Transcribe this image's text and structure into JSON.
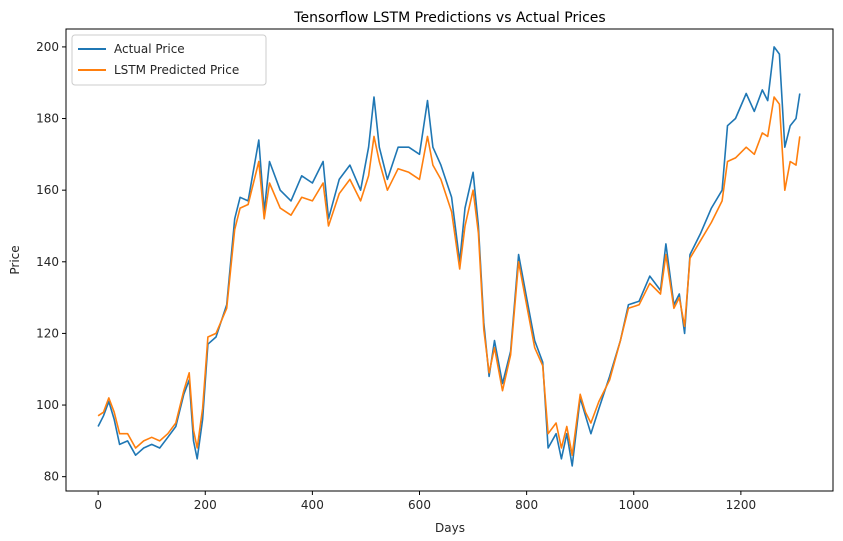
{
  "chart_data": {
    "type": "line",
    "title": "Tensorflow LSTM Predictions vs Actual Prices",
    "xlabel": "Days",
    "ylabel": "Price",
    "xlim": [
      -60,
      1372
    ],
    "ylim": [
      76,
      205
    ],
    "xticks": [
      0,
      200,
      400,
      600,
      800,
      1000,
      1200
    ],
    "yticks": [
      80,
      100,
      120,
      140,
      160,
      180,
      200
    ],
    "grid": false,
    "legend_position": "top-left",
    "series": [
      {
        "name": "Actual Price",
        "color": "#1f77b4",
        "points": [
          [
            0,
            94
          ],
          [
            10,
            97
          ],
          [
            20,
            101
          ],
          [
            30,
            96
          ],
          [
            40,
            89
          ],
          [
            55,
            90
          ],
          [
            70,
            86
          ],
          [
            85,
            88
          ],
          [
            100,
            89
          ],
          [
            115,
            88
          ],
          [
            130,
            91
          ],
          [
            145,
            94
          ],
          [
            160,
            103
          ],
          [
            170,
            107
          ],
          [
            178,
            90
          ],
          [
            185,
            85
          ],
          [
            195,
            96
          ],
          [
            205,
            117
          ],
          [
            220,
            119
          ],
          [
            240,
            128
          ],
          [
            255,
            152
          ],
          [
            265,
            158
          ],
          [
            280,
            157
          ],
          [
            300,
            174
          ],
          [
            310,
            154
          ],
          [
            320,
            168
          ],
          [
            340,
            160
          ],
          [
            360,
            157
          ],
          [
            380,
            164
          ],
          [
            400,
            162
          ],
          [
            420,
            168
          ],
          [
            430,
            152
          ],
          [
            450,
            163
          ],
          [
            470,
            167
          ],
          [
            490,
            160
          ],
          [
            505,
            172
          ],
          [
            515,
            186
          ],
          [
            525,
            172
          ],
          [
            540,
            163
          ],
          [
            560,
            172
          ],
          [
            580,
            172
          ],
          [
            600,
            170
          ],
          [
            615,
            185
          ],
          [
            625,
            172
          ],
          [
            640,
            167
          ],
          [
            660,
            158
          ],
          [
            675,
            140
          ],
          [
            685,
            155
          ],
          [
            700,
            165
          ],
          [
            710,
            150
          ],
          [
            720,
            123
          ],
          [
            730,
            108
          ],
          [
            740,
            118
          ],
          [
            755,
            106
          ],
          [
            770,
            115
          ],
          [
            785,
            142
          ],
          [
            800,
            130
          ],
          [
            815,
            118
          ],
          [
            830,
            112
          ],
          [
            840,
            88
          ],
          [
            855,
            92
          ],
          [
            865,
            85
          ],
          [
            875,
            92
          ],
          [
            885,
            83
          ],
          [
            900,
            102
          ],
          [
            910,
            97
          ],
          [
            920,
            92
          ],
          [
            935,
            99
          ],
          [
            955,
            108
          ],
          [
            975,
            118
          ],
          [
            990,
            128
          ],
          [
            1010,
            129
          ],
          [
            1030,
            136
          ],
          [
            1050,
            132
          ],
          [
            1060,
            145
          ],
          [
            1075,
            128
          ],
          [
            1085,
            131
          ],
          [
            1095,
            120
          ],
          [
            1105,
            142
          ],
          [
            1125,
            148
          ],
          [
            1145,
            155
          ],
          [
            1165,
            160
          ],
          [
            1175,
            178
          ],
          [
            1190,
            180
          ],
          [
            1210,
            187
          ],
          [
            1225,
            182
          ],
          [
            1240,
            188
          ],
          [
            1250,
            185
          ],
          [
            1262,
            200
          ],
          [
            1272,
            198
          ],
          [
            1282,
            172
          ],
          [
            1292,
            178
          ],
          [
            1303,
            180
          ],
          [
            1310,
            187
          ]
        ]
      },
      {
        "name": "LSTM Predicted Price",
        "color": "#ff7f0e",
        "points": [
          [
            0,
            97
          ],
          [
            10,
            98
          ],
          [
            20,
            102
          ],
          [
            30,
            98
          ],
          [
            40,
            92
          ],
          [
            55,
            92
          ],
          [
            70,
            88
          ],
          [
            85,
            90
          ],
          [
            100,
            91
          ],
          [
            115,
            90
          ],
          [
            130,
            92
          ],
          [
            145,
            95
          ],
          [
            160,
            104
          ],
          [
            170,
            109
          ],
          [
            178,
            93
          ],
          [
            185,
            88
          ],
          [
            195,
            99
          ],
          [
            205,
            119
          ],
          [
            220,
            120
          ],
          [
            240,
            127
          ],
          [
            255,
            149
          ],
          [
            265,
            155
          ],
          [
            280,
            156
          ],
          [
            300,
            168
          ],
          [
            310,
            152
          ],
          [
            320,
            162
          ],
          [
            340,
            155
          ],
          [
            360,
            153
          ],
          [
            380,
            158
          ],
          [
            400,
            157
          ],
          [
            420,
            162
          ],
          [
            430,
            150
          ],
          [
            450,
            159
          ],
          [
            470,
            163
          ],
          [
            490,
            157
          ],
          [
            505,
            164
          ],
          [
            515,
            175
          ],
          [
            525,
            168
          ],
          [
            540,
            160
          ],
          [
            560,
            166
          ],
          [
            580,
            165
          ],
          [
            600,
            163
          ],
          [
            615,
            175
          ],
          [
            625,
            167
          ],
          [
            640,
            163
          ],
          [
            660,
            154
          ],
          [
            675,
            138
          ],
          [
            685,
            150
          ],
          [
            700,
            160
          ],
          [
            710,
            148
          ],
          [
            720,
            121
          ],
          [
            730,
            109
          ],
          [
            740,
            116
          ],
          [
            755,
            104
          ],
          [
            770,
            114
          ],
          [
            785,
            140
          ],
          [
            800,
            128
          ],
          [
            815,
            116
          ],
          [
            830,
            111
          ],
          [
            840,
            92
          ],
          [
            855,
            95
          ],
          [
            865,
            88
          ],
          [
            875,
            94
          ],
          [
            885,
            86
          ],
          [
            900,
            103
          ],
          [
            910,
            98
          ],
          [
            920,
            95
          ],
          [
            935,
            101
          ],
          [
            955,
            107
          ],
          [
            975,
            118
          ],
          [
            990,
            127
          ],
          [
            1010,
            128
          ],
          [
            1030,
            134
          ],
          [
            1050,
            131
          ],
          [
            1060,
            142
          ],
          [
            1075,
            127
          ],
          [
            1085,
            130
          ],
          [
            1095,
            122
          ],
          [
            1105,
            141
          ],
          [
            1125,
            146
          ],
          [
            1145,
            151
          ],
          [
            1165,
            157
          ],
          [
            1175,
            168
          ],
          [
            1190,
            169
          ],
          [
            1210,
            172
          ],
          [
            1225,
            170
          ],
          [
            1240,
            176
          ],
          [
            1250,
            175
          ],
          [
            1262,
            186
          ],
          [
            1272,
            184
          ],
          [
            1282,
            160
          ],
          [
            1292,
            168
          ],
          [
            1303,
            167
          ],
          [
            1310,
            175
          ]
        ]
      }
    ]
  }
}
